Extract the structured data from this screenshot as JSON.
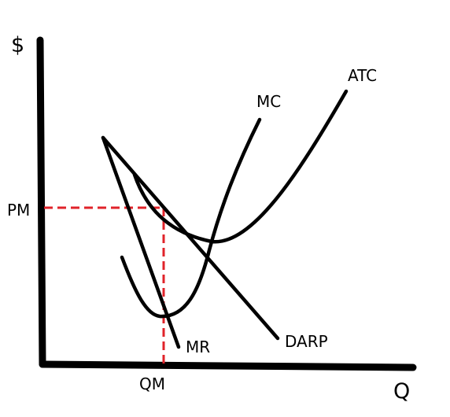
{
  "axes": {
    "y_label": "$",
    "x_label": "Q"
  },
  "curves": {
    "atc": "ATC",
    "mc": "MC",
    "darp": "DARP",
    "mr": "MR"
  },
  "markers": {
    "price": "PM",
    "quantity": "QM"
  },
  "colors": {
    "curve": "#000000",
    "guide": "#e0232a"
  }
}
